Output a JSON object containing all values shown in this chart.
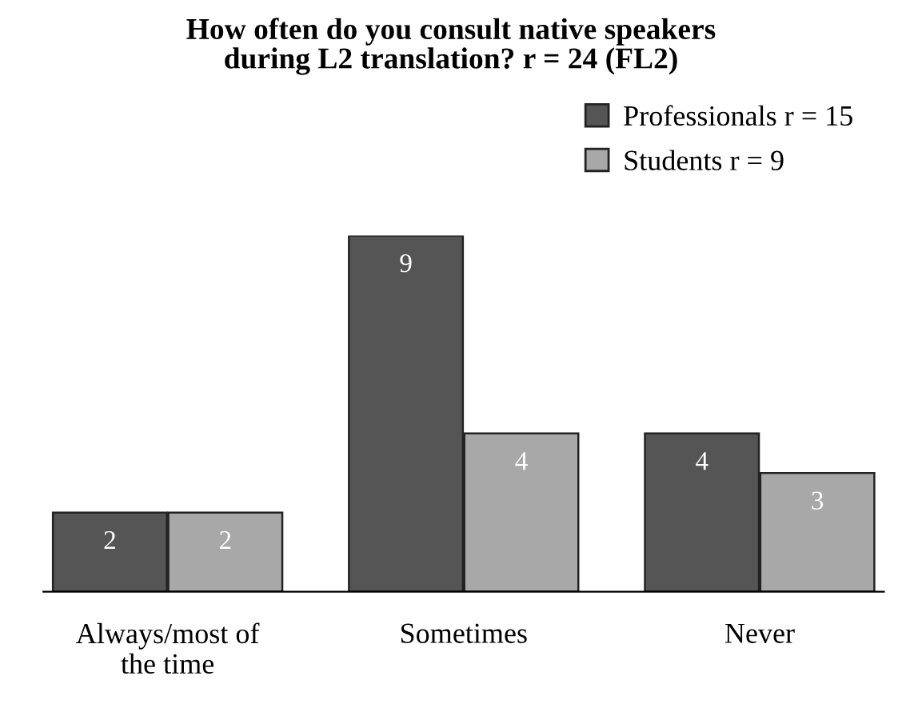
{
  "chart_data": {
    "type": "bar",
    "title": "How often do you consult native speakers\nduring L2 translation? r = 24 (FL2)",
    "categories": [
      "Always/most of the time",
      "Sometimes",
      "Never"
    ],
    "series": [
      {
        "name": "Professionals r = 15",
        "color": "#555555",
        "values": [
          2,
          9,
          4
        ]
      },
      {
        "name": "Students r = 9",
        "color": "#a8a8a8",
        "values": [
          2,
          4,
          3
        ]
      }
    ],
    "data_labels": true,
    "legend": "top right",
    "grid": false
  }
}
